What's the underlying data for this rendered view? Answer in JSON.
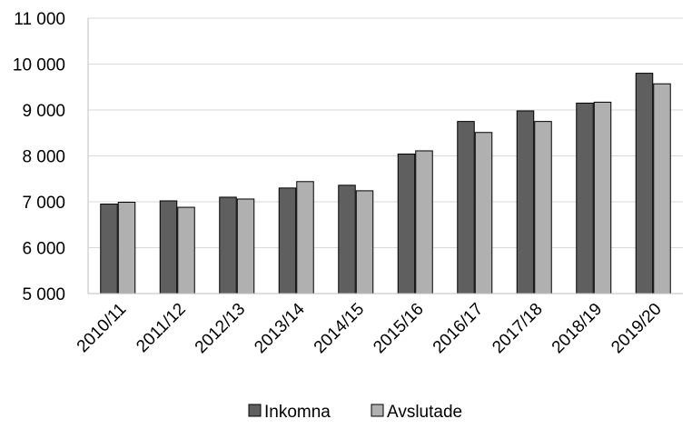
{
  "chart_data": {
    "type": "bar",
    "title": "",
    "xlabel": "",
    "ylabel": "",
    "ylim": [
      5000,
      11000
    ],
    "yticks": [
      5000,
      6000,
      7000,
      8000,
      9000,
      10000,
      11000
    ],
    "ytick_labels": [
      "5 000",
      "6 000",
      "7 000",
      "8 000",
      "9 000",
      "10 000",
      "11 000"
    ],
    "grid": true,
    "legend_position": "bottom",
    "categories": [
      "2010/11",
      "2011/12",
      "2012/13",
      "2013/14",
      "2014/15",
      "2015/16",
      "2016/17",
      "2017/18",
      "2018/19",
      "2019/20"
    ],
    "series": [
      {
        "name": "Inkomna",
        "color": "#5f5f5f",
        "values": [
          6950,
          7020,
          7100,
          7300,
          7360,
          8040,
          8750,
          8980,
          9150,
          9800
        ]
      },
      {
        "name": "Avslutade",
        "color": "#b0b0b0",
        "values": [
          6990,
          6880,
          7060,
          7440,
          7240,
          8110,
          8510,
          8750,
          9170,
          9570
        ]
      }
    ]
  }
}
